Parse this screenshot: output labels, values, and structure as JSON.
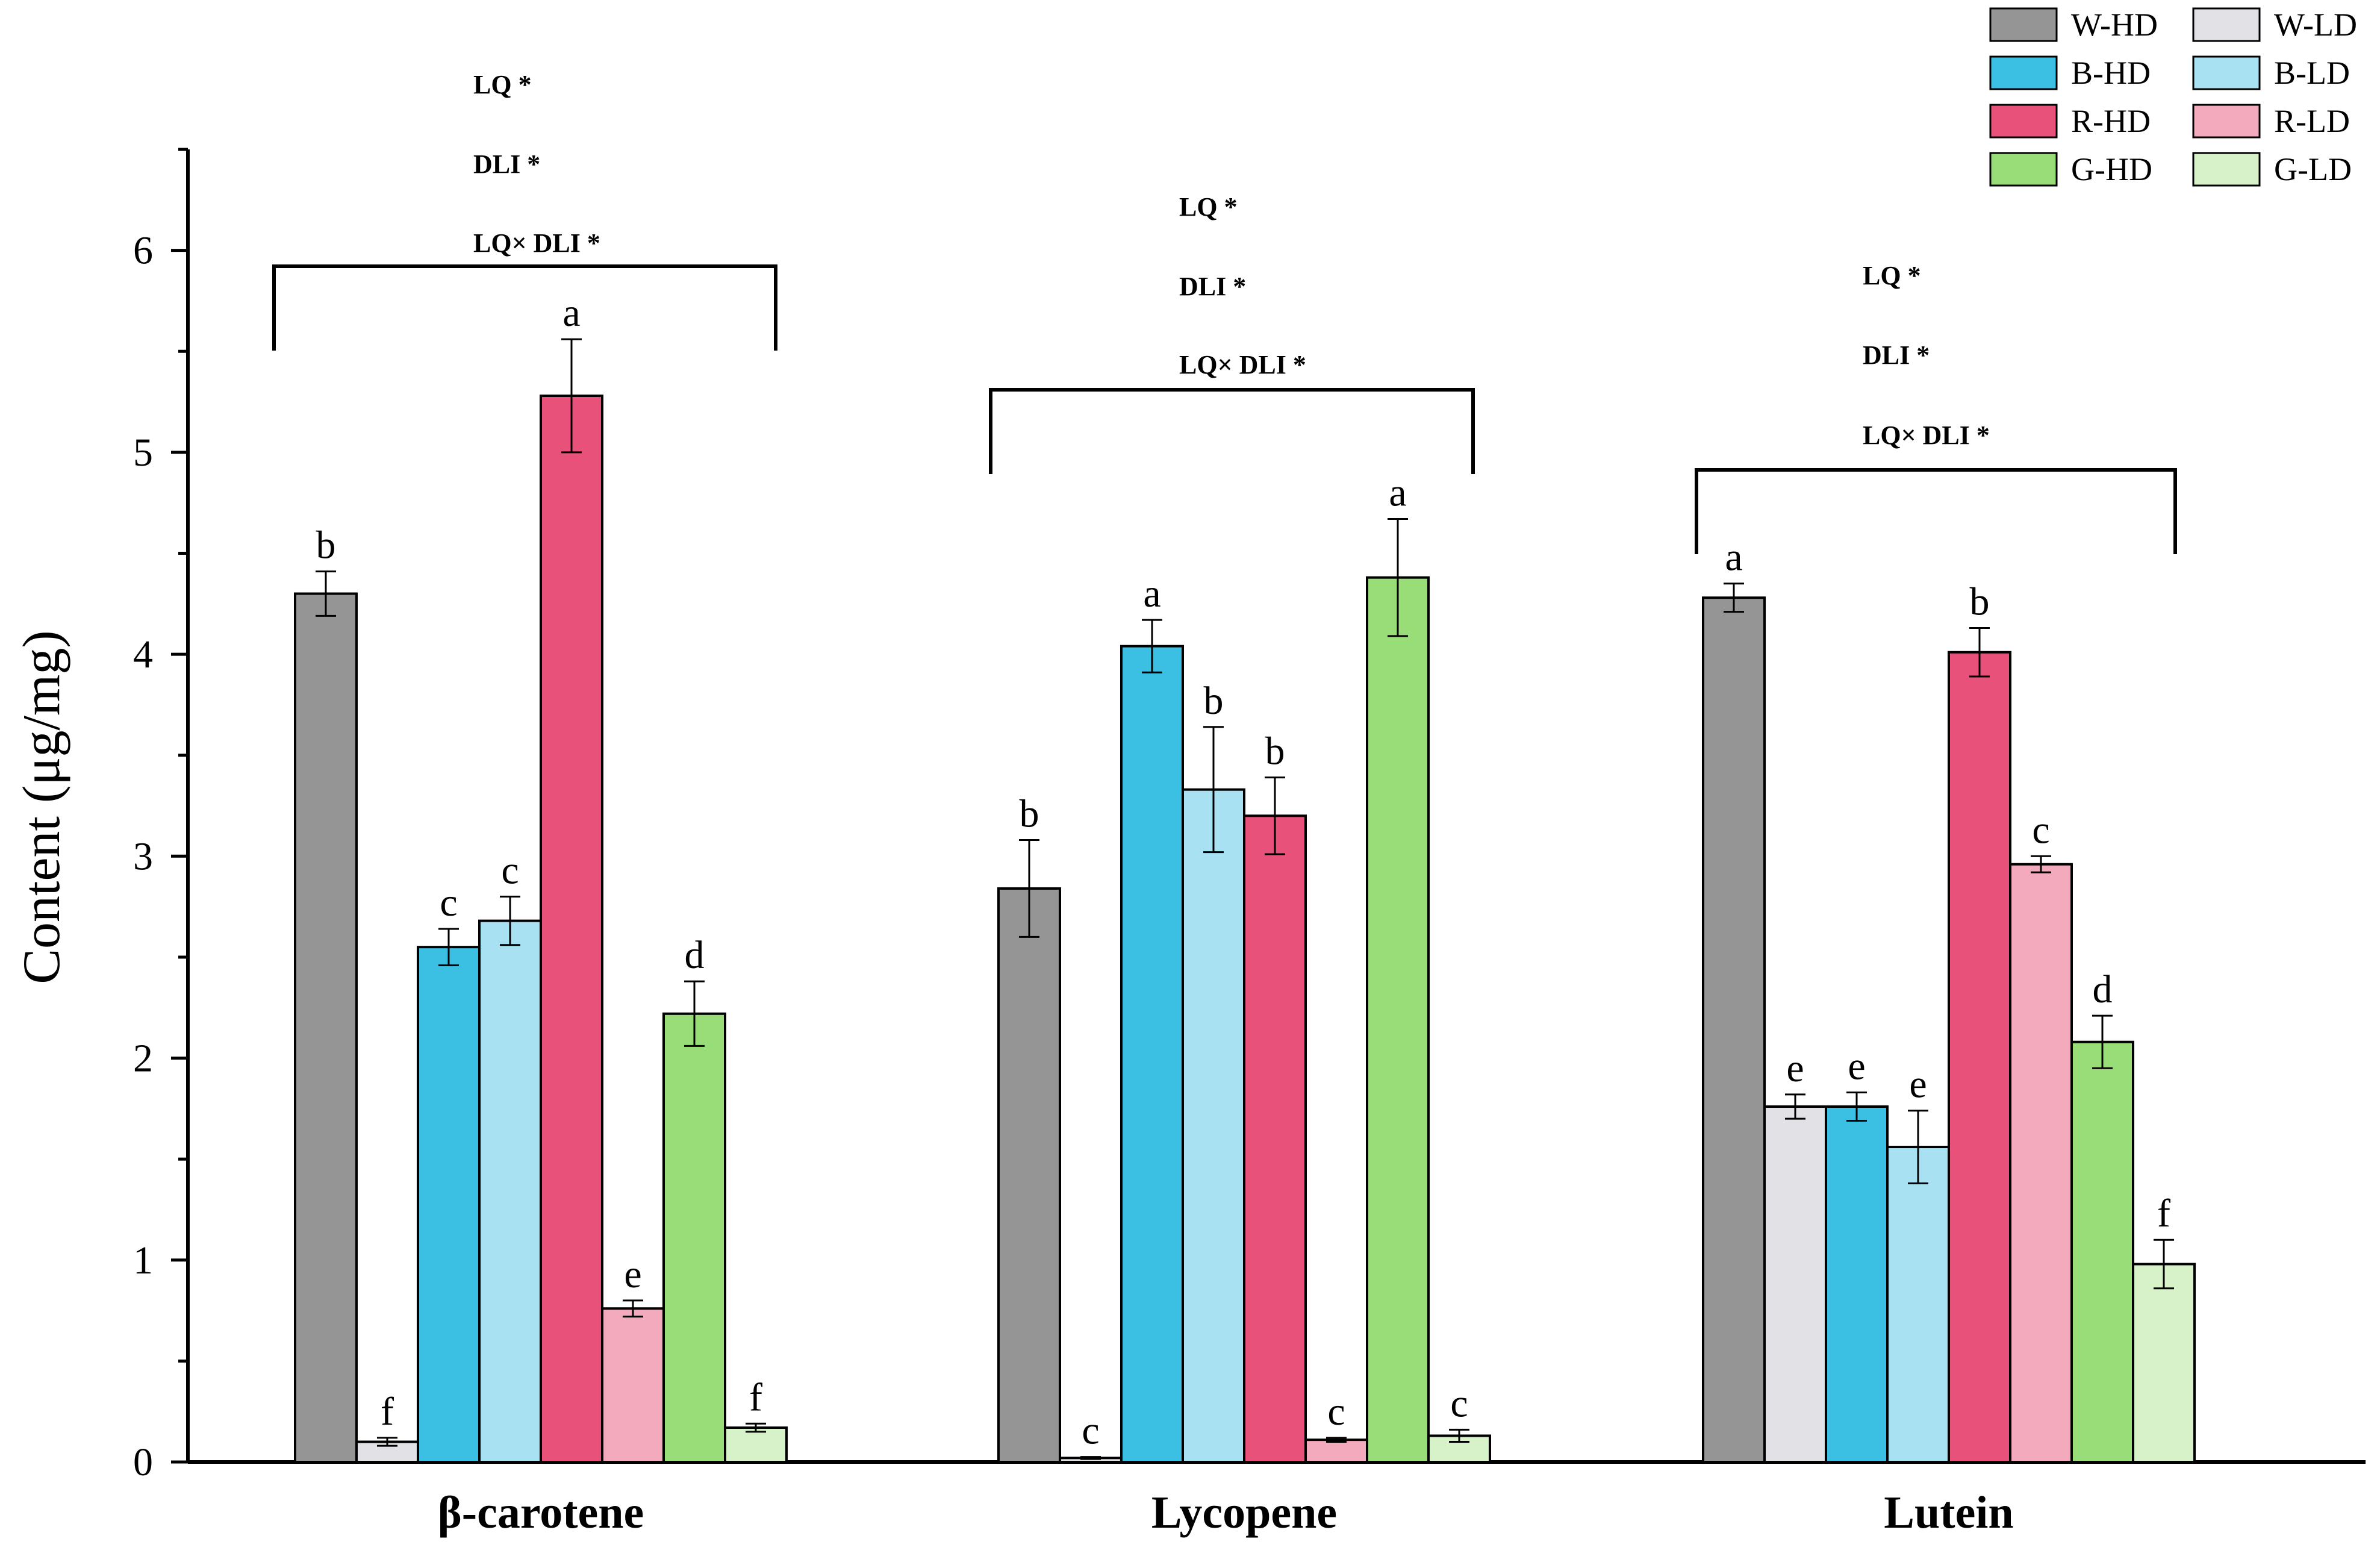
{
  "chart_data": {
    "type": "bar",
    "ylabel": "Content (μg/mg)",
    "xlabel": "",
    "ylim": [
      0,
      6.5
    ],
    "yticks": [
      "0",
      "1",
      "2",
      "3",
      "4",
      "5",
      "6"
    ],
    "grid": false,
    "legend_position": "top-right",
    "categories": [
      "β-carotene",
      "Lycopene",
      "Lutein"
    ],
    "series": [
      {
        "name": "W-HD",
        "color": "#959595",
        "values": [
          4.3,
          2.84,
          4.28
        ],
        "errors": [
          0.11,
          0.24,
          0.07
        ],
        "letters": [
          "b",
          "b",
          "a"
        ]
      },
      {
        "name": "W-LD",
        "color": "#e1e1e6",
        "values": [
          0.1,
          0.02,
          1.76
        ],
        "errors": [
          0.02,
          0.005,
          0.06
        ],
        "letters": [
          "f",
          "c",
          "e"
        ]
      },
      {
        "name": "B-HD",
        "color": "#3bbfe2",
        "values": [
          2.55,
          4.04,
          1.76
        ],
        "errors": [
          0.09,
          0.13,
          0.07
        ],
        "letters": [
          "c",
          "a",
          "e"
        ]
      },
      {
        "name": "B-LD",
        "color": "#a8e2f2",
        "values": [
          2.68,
          3.33,
          1.56
        ],
        "errors": [
          0.12,
          0.31,
          0.18
        ],
        "letters": [
          "c",
          "b",
          "e"
        ]
      },
      {
        "name": "R-HD",
        "color": "#e8527a",
        "values": [
          5.28,
          3.2,
          4.01
        ],
        "errors": [
          0.28,
          0.19,
          0.12
        ],
        "letters": [
          "a",
          "b",
          "b"
        ]
      },
      {
        "name": "R-LD",
        "color": "#f3aabc",
        "values": [
          0.76,
          0.11,
          2.96
        ],
        "errors": [
          0.04,
          0.01,
          0.04
        ],
        "letters": [
          "e",
          "c",
          "c"
        ]
      },
      {
        "name": "G-HD",
        "color": "#98dd77",
        "values": [
          2.22,
          4.38,
          2.08
        ],
        "errors": [
          0.16,
          0.29,
          0.13
        ],
        "letters": [
          "d",
          "a",
          "d"
        ]
      },
      {
        "name": "G-LD",
        "color": "#d7f2c9",
        "values": [
          0.17,
          0.13,
          0.98
        ],
        "errors": [
          0.02,
          0.03,
          0.12
        ],
        "letters": [
          "f",
          "c",
          "f"
        ]
      }
    ],
    "annotations": [
      {
        "group": "β-carotene",
        "lines": [
          "LQ  *",
          "DLI *",
          "LQ× DLI *"
        ]
      },
      {
        "group": "Lycopene",
        "lines": [
          "LQ  *",
          "DLI *",
          "LQ× DLI *"
        ]
      },
      {
        "group": "Lutein",
        "lines": [
          "LQ  *",
          "DLI *",
          "LQ× DLI *"
        ]
      }
    ]
  }
}
